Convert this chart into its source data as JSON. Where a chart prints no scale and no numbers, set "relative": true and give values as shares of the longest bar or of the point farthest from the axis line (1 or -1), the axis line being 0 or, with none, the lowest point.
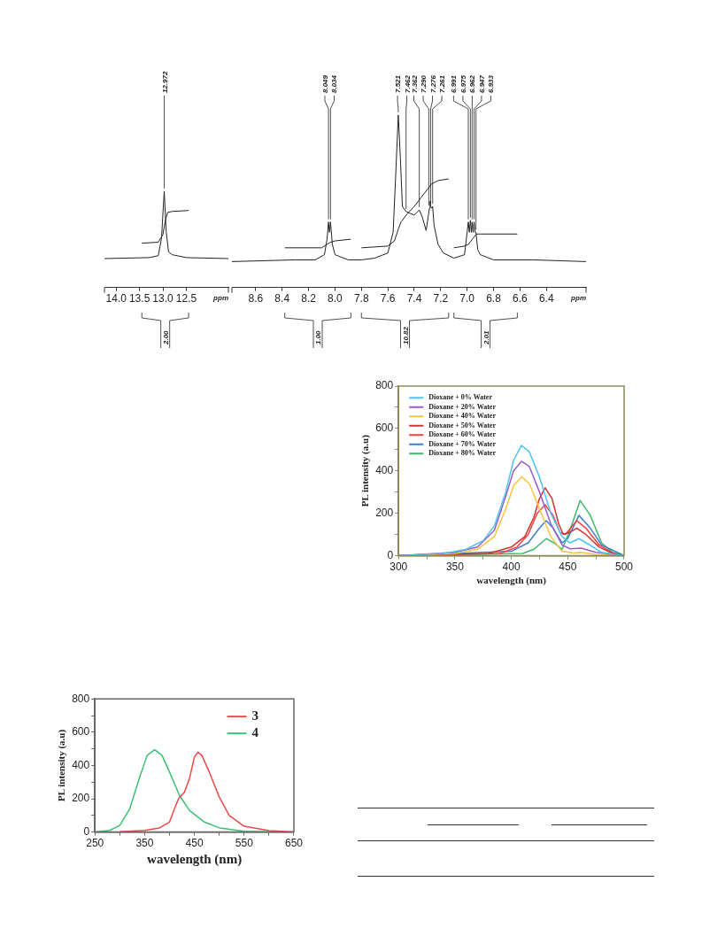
{
  "chart_data": [
    {
      "type": "line",
      "relative": true,
      "xlabel": "ppm",
      "xlim": [
        14.25,
        11.6
      ],
      "marker": "none",
      "line_style": "solid",
      "grid": false,
      "legend": false,
      "xticks": [
        {
          "value": 14,
          "label": "14.0"
        },
        13.5,
        {
          "value": 13,
          "label": "13.0"
        },
        12.5
      ],
      "series": [
        {
          "color": "#222222",
          "x": [
            14.25,
            13.3,
            13.1,
            13.03,
            12.972,
            12.93,
            12.88,
            12.8,
            12.5,
            11.6
          ],
          "values": [
            0.3,
            0.31,
            0.33,
            0.51,
            1,
            0.58,
            0.37,
            0.34,
            0.31,
            0.3
          ]
        },
        {
          "color": "#222222",
          "x": [
            13.45,
            13.1,
            13.0,
            12.95,
            12.9,
            12.8,
            12.45
          ],
          "values": [
            0.46,
            0.47,
            0.55,
            0.69,
            0.78,
            0.79,
            0.8
          ]
        }
      ],
      "annotations": [
        {
          "text": "12.972",
          "x": 12.972,
          "y": 1
        },
        "2.00"
      ]
    },
    {
      "type": "line",
      "relative": true,
      "xlabel": "ppm",
      "xlim": [
        8.78,
        6.1
      ],
      "marker": "none",
      "line_style": "solid",
      "grid": false,
      "legend": false,
      "xticks": [
        8.6,
        8.4,
        8.2,
        {
          "value": 8,
          "label": "8.0"
        },
        7.8,
        7.6,
        7.4,
        7.2,
        {
          "value": 7,
          "label": "7.0"
        },
        6.8,
        6.6,
        6.4
      ],
      "series": [
        {
          "color": "#222222",
          "x": [
            8.78,
            8.3,
            8.15,
            8.08,
            8.06,
            8.049,
            8.042,
            8.034,
            8.02,
            8.0,
            7.9,
            7.8,
            7.7,
            7.6,
            7.56,
            7.54,
            7.521,
            7.505,
            7.49,
            7.462,
            7.43,
            7.4,
            7.362,
            7.34,
            7.31,
            7.295,
            7.285,
            7.28,
            7.276,
            7.268,
            7.261,
            7.25,
            7.22,
            7.18,
            7.1,
            7.02,
            7.0,
            6.991,
            6.983,
            6.975,
            6.968,
            6.962,
            6.955,
            6.947,
            6.94,
            6.933,
            6.92,
            6.9,
            6.8,
            6.5,
            6.1
          ],
          "values": [
            0.15,
            0.16,
            0.16,
            0.19,
            0.28,
            0.38,
            0.32,
            0.38,
            0.25,
            0.19,
            0.16,
            0.16,
            0.17,
            0.2,
            0.32,
            0.66,
            1,
            0.75,
            0.47,
            0.44,
            0.43,
            0.42,
            0.45,
            0.41,
            0.33,
            0.41,
            0.46,
            0.5,
            0.47,
            0.46,
            0.47,
            0.36,
            0.25,
            0.2,
            0.17,
            0.19,
            0.32,
            0.38,
            0.32,
            0.39,
            0.32,
            0.38,
            0.32,
            0.38,
            0.32,
            0.32,
            0.22,
            0.19,
            0.16,
            0.16,
            0.15
          ]
        },
        {
          "color": "#222222",
          "x": [
            8.38,
            8.1,
            8.06,
            8.04,
            8.0,
            7.88
          ],
          "values": [
            0.23,
            0.23,
            0.25,
            0.26,
            0.27,
            0.28
          ]
        },
        {
          "color": "#222222",
          "x": [
            7.8,
            7.6,
            7.55,
            7.52,
            7.5,
            7.45,
            7.4,
            7.35,
            7.3,
            7.27,
            7.22,
            7.14
          ],
          "values": [
            0.23,
            0.24,
            0.27,
            0.34,
            0.38,
            0.43,
            0.47,
            0.52,
            0.57,
            0.6,
            0.62,
            0.63
          ]
        },
        {
          "color": "#222222",
          "x": [
            7.1,
            7.02,
            6.99,
            6.96,
            6.93,
            6.9,
            6.62
          ],
          "values": [
            0.23,
            0.24,
            0.25,
            0.28,
            0.31,
            0.31,
            0.31
          ]
        }
      ],
      "annotations": [
        {
          "text": "8.049",
          "x": 8.049,
          "y": 0.38
        },
        {
          "text": "8.034",
          "x": 8.034,
          "y": 0.38
        },
        {
          "text": "7.521",
          "x": 7.521,
          "y": 1
        },
        {
          "text": "7.462",
          "x": 7.462,
          "y": 0.44
        },
        {
          "text": "7.362",
          "x": 7.362,
          "y": 0.45
        },
        {
          "text": "7.290",
          "x": 7.29,
          "y": 0.46
        },
        {
          "text": "7.276",
          "x": 7.276,
          "y": 0.47
        },
        {
          "text": "7.261",
          "x": 7.261,
          "y": 0.47
        },
        {
          "text": "6.991",
          "x": 6.991,
          "y": 0.38
        },
        {
          "text": "6.975",
          "x": 6.975,
          "y": 0.39
        },
        {
          "text": "6.962",
          "x": 6.962,
          "y": 0.38
        },
        {
          "text": "6.947",
          "x": 6.947,
          "y": 0.38
        },
        {
          "text": "6.933",
          "x": 6.933,
          "y": 0.32
        },
        "1.00",
        "10.82",
        "2.01"
      ]
    },
    {
      "type": "line",
      "xlabel": "wavelength (nm)",
      "ylabel": "PL intensity (a.u)",
      "xlim": [
        300,
        500
      ],
      "ylim": [
        0,
        800
      ],
      "marker": "none",
      "line_style": "solid",
      "grid": false,
      "legend": "top left",
      "xticks": [
        300,
        {
          "value": 325,
          "label": null
        },
        350,
        {
          "value": 375,
          "label": null
        },
        400,
        {
          "value": 425,
          "label": null
        },
        450,
        {
          "value": 475,
          "label": null
        },
        500
      ],
      "yticks": [
        0,
        {
          "value": 100,
          "label": null
        },
        200,
        {
          "value": 300,
          "label": null
        },
        400,
        {
          "value": 500,
          "label": null
        },
        600,
        {
          "value": 700,
          "label": null
        },
        800
      ],
      "series": [
        {
          "name": "Dioxane + 0% Water",
          "color": "#4cc4f0",
          "x": [
            300,
            340,
            360,
            375,
            385,
            395,
            402,
            409,
            416,
            425,
            435,
            445,
            452,
            460,
            468,
            480,
            500
          ],
          "values": [
            0,
            10,
            30,
            70,
            140,
            300,
            450,
            520,
            490,
            370,
            200,
            90,
            60,
            80,
            55,
            15,
            0
          ]
        },
        {
          "name": "Dioxane + 20% Water",
          "color": "#9b5cc8",
          "x": [
            300,
            350,
            370,
            385,
            395,
            402,
            409,
            416,
            425,
            435,
            445,
            452,
            462,
            475,
            500
          ],
          "values": [
            0,
            15,
            40,
            120,
            280,
            400,
            445,
            420,
            300,
            150,
            50,
            32,
            35,
            15,
            0
          ]
        },
        {
          "name": "Dioxane + 40% Water",
          "color": "#f7c440",
          "x": [
            300,
            350,
            370,
            385,
            395,
            402,
            409,
            416,
            425,
            435,
            445,
            455,
            462,
            475,
            500
          ],
          "values": [
            0,
            10,
            30,
            90,
            220,
            330,
            372,
            340,
            220,
            90,
            20,
            12,
            15,
            5,
            0
          ]
        },
        {
          "name": "Dioxane + 50% Water",
          "color": "#cf3535",
          "x": [
            300,
            380,
            400,
            412,
            420,
            425,
            430,
            436,
            442,
            446,
            452,
            458,
            466,
            478,
            490,
            500
          ],
          "values": [
            0,
            10,
            40,
            90,
            180,
            270,
            320,
            270,
            150,
            100,
            110,
            130,
            100,
            40,
            10,
            0
          ]
        },
        {
          "name": "Dioxane + 60% Water",
          "color": "#f04040",
          "x": [
            300,
            390,
            405,
            415,
            423,
            430,
            437,
            443,
            448,
            458,
            466,
            478,
            490,
            500
          ],
          "values": [
            0,
            10,
            40,
            100,
            200,
            240,
            190,
            110,
            100,
            165,
            130,
            50,
            12,
            0
          ]
        },
        {
          "name": "Dioxane + 70% Water",
          "color": "#3b7fd1",
          "x": [
            300,
            400,
            415,
            425,
            431,
            437,
            445,
            450,
            460,
            470,
            480,
            500
          ],
          "values": [
            0,
            20,
            60,
            130,
            165,
            130,
            60,
            80,
            190,
            130,
            50,
            0
          ]
        },
        {
          "name": "Dioxane + 80% Water",
          "color": "#3cba6a",
          "x": [
            300,
            410,
            420,
            431,
            438,
            445,
            452,
            461,
            470,
            480,
            490,
            500
          ],
          "values": [
            0,
            10,
            30,
            80,
            60,
            30,
            120,
            260,
            190,
            60,
            15,
            0
          ]
        }
      ]
    },
    {
      "type": "line",
      "xlabel": "wavelength (nm)",
      "ylabel": "PL intensity (a.u)",
      "xlim": [
        250,
        650
      ],
      "ylim": [
        0,
        800
      ],
      "marker": "none",
      "line_style": "solid",
      "grid": false,
      "legend": "top right",
      "xticks": [
        250,
        {
          "value": 300,
          "label": null
        },
        350,
        {
          "value": 400,
          "label": null
        },
        450,
        {
          "value": 500,
          "label": null
        },
        550,
        {
          "value": 600,
          "label": null
        },
        650
      ],
      "yticks": [
        0,
        {
          "value": 100,
          "label": null
        },
        200,
        {
          "value": 300,
          "label": null
        },
        400,
        {
          "value": 500,
          "label": null
        },
        600,
        {
          "value": 700,
          "label": null
        },
        800
      ],
      "series": [
        {
          "name": "3",
          "color": "#f0484a",
          "x": [
            300,
            350,
            380,
            400,
            410,
            418,
            430,
            440,
            450,
            457,
            465,
            480,
            500,
            520,
            550,
            600,
            650
          ],
          "values": [
            2,
            10,
            25,
            60,
            140,
            200,
            240,
            320,
            450,
            480,
            460,
            360,
            210,
            100,
            35,
            8,
            0
          ]
        },
        {
          "name": "4",
          "color": "#3cc076",
          "x": [
            250,
            280,
            300,
            320,
            340,
            355,
            370,
            385,
            400,
            420,
            440,
            470,
            500,
            550,
            600
          ],
          "values": [
            0,
            10,
            40,
            140,
            330,
            460,
            495,
            460,
            360,
            220,
            130,
            60,
            25,
            5,
            0
          ]
        }
      ]
    }
  ]
}
